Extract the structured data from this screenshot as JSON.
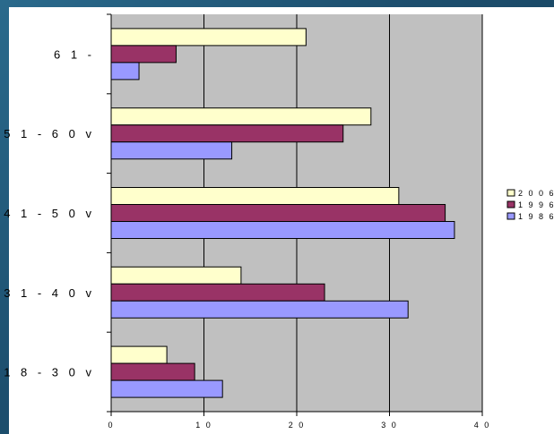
{
  "chart_data": {
    "type": "bar",
    "orientation": "horizontal",
    "categories": [
      "6 1  -",
      "5 1  - 6 0 v",
      "4 1  - 5 0 v",
      "3 1  - 4 0 v",
      "1 8  - 3 0 v"
    ],
    "series": [
      {
        "name": "2 0 0 6",
        "color": "#ffffcc",
        "values": [
          21,
          28,
          31,
          14,
          6
        ]
      },
      {
        "name": "1 9 9 6",
        "color": "#993366",
        "values": [
          7,
          25,
          36,
          23,
          9
        ]
      },
      {
        "name": "1 9 8 6",
        "color": "#9999ff",
        "values": [
          3,
          13,
          37,
          32,
          12
        ]
      }
    ],
    "x_ticks": [
      "0",
      "1 0",
      "2 0",
      "3 0",
      "4 0"
    ],
    "xlim": [
      0,
      40
    ],
    "grid": true,
    "plot_background": "#c0c0c0",
    "legend_position": "right"
  }
}
